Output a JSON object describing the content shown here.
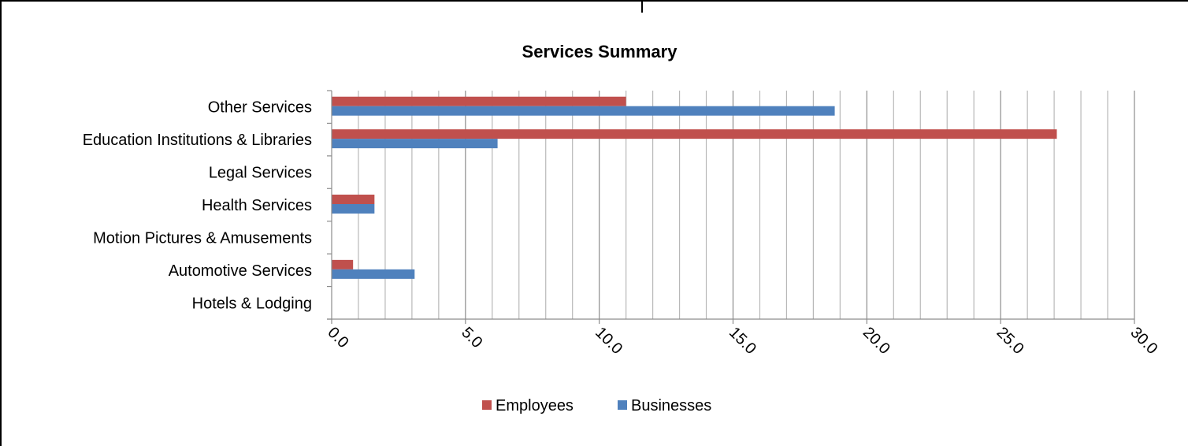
{
  "chart_data": {
    "type": "bar",
    "orientation": "horizontal",
    "title": "Services Summary",
    "categories": [
      "Other Services",
      "Education Institutions & Libraries",
      "Legal Services",
      "Health Services",
      "Motion Pictures & Amusements",
      "Automotive Services",
      "Hotels & Lodging"
    ],
    "series": [
      {
        "name": "Employees",
        "color": "#c0504d",
        "values": [
          11.0,
          27.1,
          0,
          1.6,
          0,
          0.8,
          0
        ]
      },
      {
        "name": "Businesses",
        "color": "#4f81bd",
        "values": [
          18.8,
          6.2,
          0,
          1.6,
          0,
          3.1,
          0
        ]
      }
    ],
    "xlim": [
      0,
      30
    ],
    "major_tick_step": 5,
    "minor_gridline_step": 1,
    "tick_labels": [
      "0.0",
      "5.0",
      "10.0",
      "15.0",
      "20.0",
      "25.0",
      "30.0"
    ],
    "grid": true,
    "legend": "bottom",
    "xlabel": "",
    "ylabel": ""
  }
}
